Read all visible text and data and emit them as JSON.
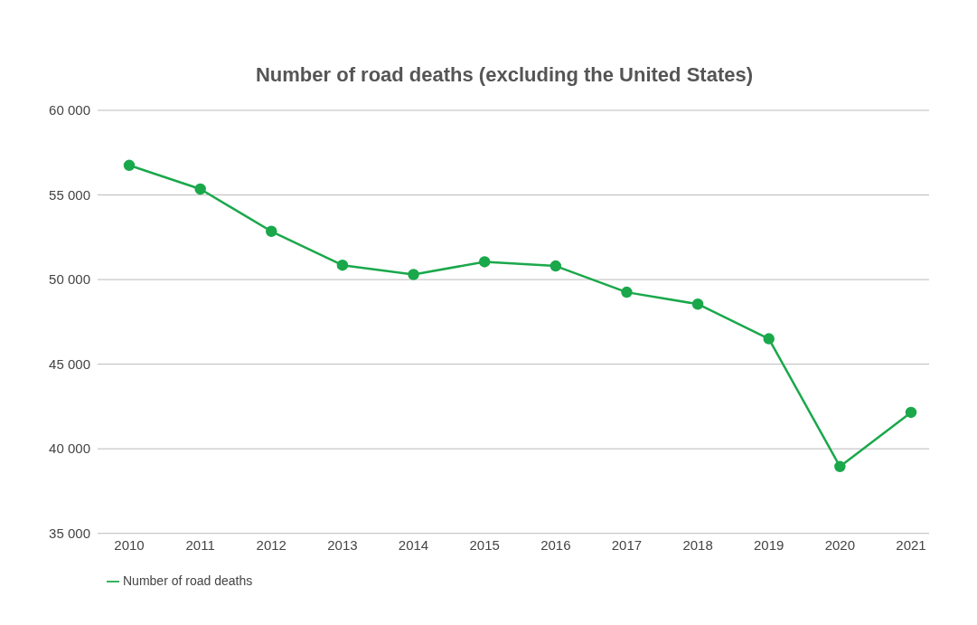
{
  "chart_data": {
    "type": "line",
    "title": "Number of road deaths (excluding the United States)",
    "categories": [
      "2010",
      "2011",
      "2012",
      "2013",
      "2014",
      "2015",
      "2016",
      "2017",
      "2018",
      "2019",
      "2020",
      "2021"
    ],
    "series": [
      {
        "name": "Number of road deaths",
        "color": "#1aa84b",
        "values": [
          56750,
          55350,
          52850,
          50850,
          50300,
          51050,
          50800,
          49250,
          48550,
          46500,
          38950,
          42150
        ]
      }
    ],
    "ylim": [
      35000,
      60000
    ],
    "yticks": [
      {
        "value": 35000,
        "label": "35 000"
      },
      {
        "value": 40000,
        "label": "40 000"
      },
      {
        "value": 45000,
        "label": "45 000"
      },
      {
        "value": 50000,
        "label": "50 000"
      },
      {
        "value": 55000,
        "label": "55 000"
      },
      {
        "value": 60000,
        "label": "60 000"
      }
    ],
    "grid": "y",
    "legend": "bottom left",
    "marker": "circle",
    "line_style": "solid"
  }
}
